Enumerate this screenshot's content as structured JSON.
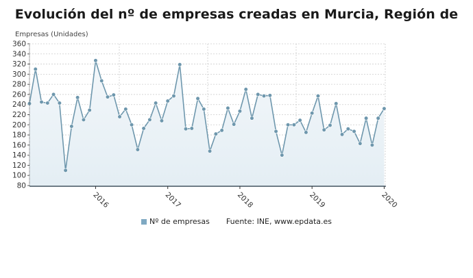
{
  "title": "Evolución del nº de empresas creadas en Murcia, Región de",
  "y_axis_label": "Empresas (Unidades)",
  "legend": {
    "series_label": "Nº de empresas",
    "source": "Fuente: INE, www.epdata.es"
  },
  "colors": {
    "line": "#6e97ad",
    "marker": "#6e97ad",
    "area_top": "#f3f7fa",
    "area_bottom": "#e4eef4",
    "grid": "#cccccc",
    "swatch": "#7fa9c2"
  },
  "chart_data": {
    "type": "line",
    "title": "Evolución del nº de empresas creadas en Murcia, Región de",
    "xlabel": "",
    "ylabel": "Empresas (Unidades)",
    "ylim": [
      80,
      360
    ],
    "yticks": [
      80,
      100,
      120,
      140,
      160,
      180,
      200,
      220,
      240,
      260,
      280,
      300,
      320,
      340,
      360
    ],
    "xtick_labels": [
      "2016",
      "2017",
      "2018",
      "2019",
      "2020"
    ],
    "grid": true,
    "legend_position": "bottom",
    "area_fill": true,
    "x": [
      "2015-02",
      "2015-03",
      "2015-04",
      "2015-05",
      "2015-06",
      "2015-07",
      "2015-08",
      "2015-09",
      "2015-10",
      "2015-11",
      "2015-12",
      "2016-01",
      "2016-02",
      "2016-03",
      "2016-04",
      "2016-05",
      "2016-06",
      "2016-07",
      "2016-08",
      "2016-09",
      "2016-10",
      "2016-11",
      "2016-12",
      "2017-01",
      "2017-02",
      "2017-03",
      "2017-04",
      "2017-05",
      "2017-06",
      "2017-07",
      "2017-08",
      "2017-09",
      "2017-10",
      "2017-11",
      "2017-12",
      "2018-01",
      "2018-02",
      "2018-03",
      "2018-04",
      "2018-05",
      "2018-06",
      "2018-07",
      "2018-08",
      "2018-09",
      "2018-10",
      "2018-11",
      "2018-12",
      "2019-01",
      "2019-02",
      "2019-03",
      "2019-04",
      "2019-05",
      "2019-06",
      "2019-07",
      "2019-08",
      "2019-09",
      "2019-10",
      "2019-11",
      "2019-12",
      "2020-01"
    ],
    "series": [
      {
        "name": "Nº de empresas",
        "values": [
          242,
          310,
          245,
          243,
          260,
          243,
          110,
          197,
          254,
          210,
          229,
          327,
          287,
          255,
          259,
          216,
          231,
          200,
          151,
          193,
          210,
          243,
          208,
          247,
          257,
          319,
          192,
          193,
          252,
          231,
          148,
          182,
          189,
          233,
          201,
          227,
          270,
          213,
          260,
          257,
          258,
          187,
          140,
          200,
          200,
          209,
          185,
          223,
          257,
          190,
          199,
          242,
          181,
          192,
          187,
          163,
          213,
          160,
          213,
          232
        ]
      }
    ]
  }
}
